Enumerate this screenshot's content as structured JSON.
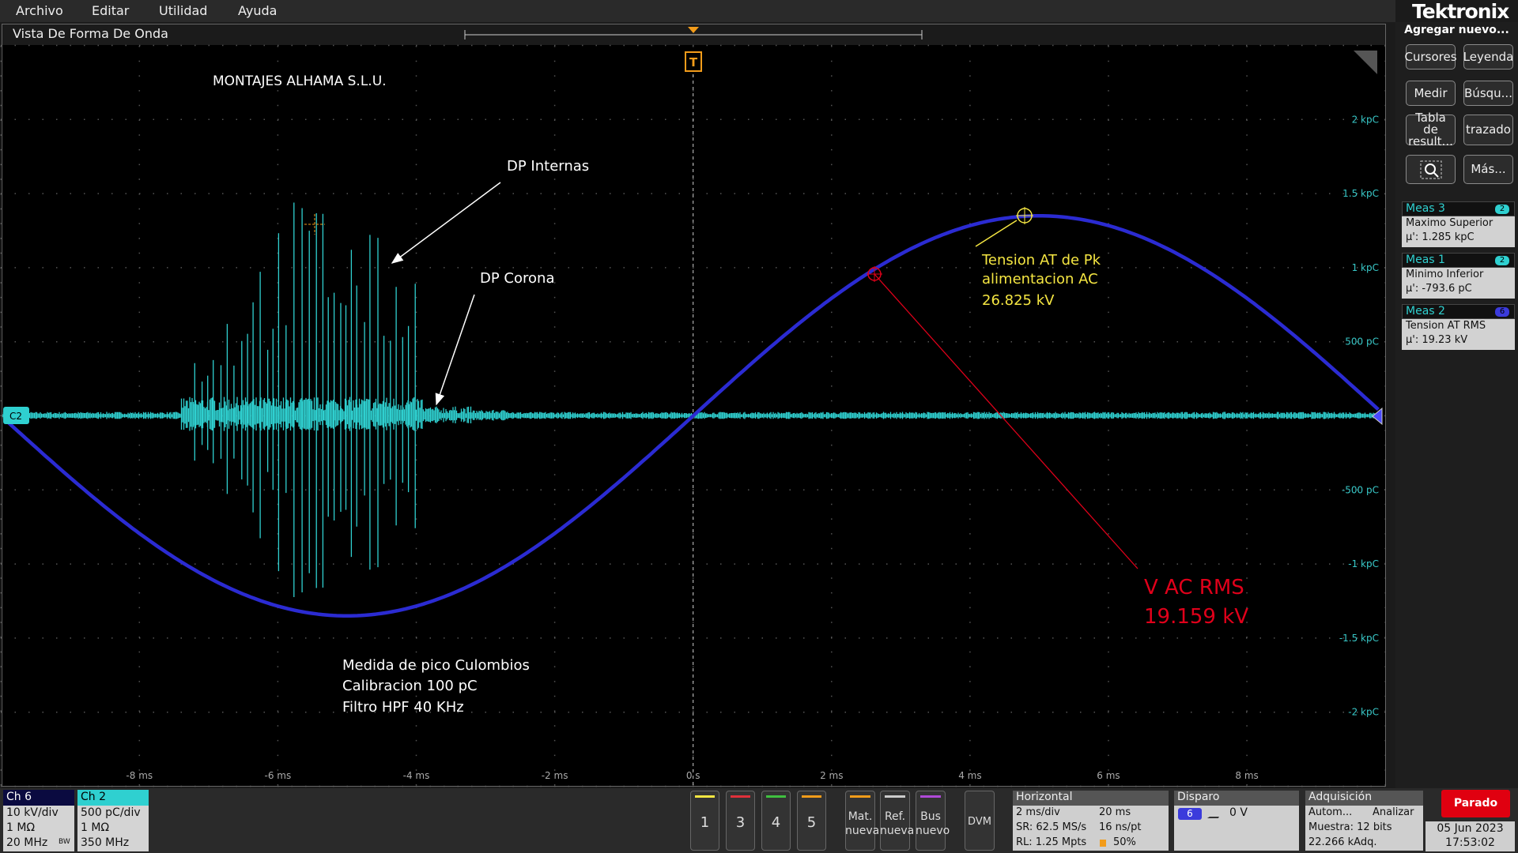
{
  "menu": [
    "Archivo",
    "Editar",
    "Utilidad",
    "Ayuda"
  ],
  "brand": "Tektronix",
  "waveform_view": {
    "title": "Vista De Forma De Onda",
    "trigger_marker": "T",
    "channel_marker": "C2",
    "y_labels": [
      "2 kpC",
      "1.5 kpC",
      "1 kpC",
      "500 pC",
      "-500 pC",
      "-1 kpC",
      "-1.5 kpC",
      "-2 kpC"
    ],
    "x_labels": [
      "-8 ms",
      "-6 ms",
      "-4 ms",
      "-2 ms",
      "0 s",
      "2 ms",
      "4 ms",
      "6 ms",
      "8 ms"
    ],
    "annotations": {
      "company": "MONTAJES ALHAMA S.L.U.",
      "internal": "DP Internas",
      "corona": "DP Corona",
      "peak": [
        "Tension AT de Pk",
        "alimentacion AC",
        "26.825 kV"
      ],
      "rms": [
        "V AC RMS",
        "19.159 kV"
      ],
      "notes": [
        "Medida de pico Culombios",
        "Calibracion 100 pC",
        "Filtro HPF 40 KHz"
      ]
    }
  },
  "side_panel": {
    "header": "Agregar nuevo...",
    "buttons": [
      "Cursores",
      "Leyenda",
      "Medir",
      "Búsqu...",
      "Tabla de result...",
      "trazado",
      "Más..."
    ],
    "measurements": [
      {
        "name": "Meas 3",
        "badge": "2",
        "label": "Maximo Superior",
        "value": "μ': 1.285 kpC"
      },
      {
        "name": "Meas 1",
        "badge": "2",
        "label": "Minimo Inferior",
        "value": "μ': -793.6 pC"
      },
      {
        "name": "Meas 2",
        "badge": "6",
        "label": "Tension AT RMS",
        "value": "μ': 19.23 kV"
      }
    ]
  },
  "bottom_bar": {
    "ch6": {
      "title": "Ch 6",
      "lines": [
        "10 kV/div",
        "1 MΩ",
        "20 MHz"
      ],
      "bw": "BW"
    },
    "ch2": {
      "title": "Ch 2",
      "lines": [
        "500 pC/div",
        "1 MΩ",
        "350 MHz"
      ]
    },
    "buttons": [
      "1",
      "3",
      "4",
      "5"
    ],
    "new_buttons": [
      [
        "Mat.",
        "nueva"
      ],
      [
        "Ref.",
        "nueva"
      ],
      [
        "Bus",
        "nuevo"
      ]
    ],
    "dvm": "DVM",
    "horizontal": {
      "title": "Horizontal",
      "cells": [
        "2 ms/div",
        "20 ms",
        "SR: 62.5 MS/s",
        "16 ns/pt",
        "RL: 1.25 Mpts",
        "50%"
      ]
    },
    "trigger": {
      "title": "Disparo",
      "source": "6",
      "level": "0 V"
    },
    "acquisition": {
      "title": "Adquisición",
      "cells": [
        "Autom...",
        "Analizar",
        "Muestra: 12 bits",
        "22.266 kAdq."
      ]
    },
    "status": "Parado",
    "date": "05 Jun 2023",
    "time": "17:53:02"
  }
}
